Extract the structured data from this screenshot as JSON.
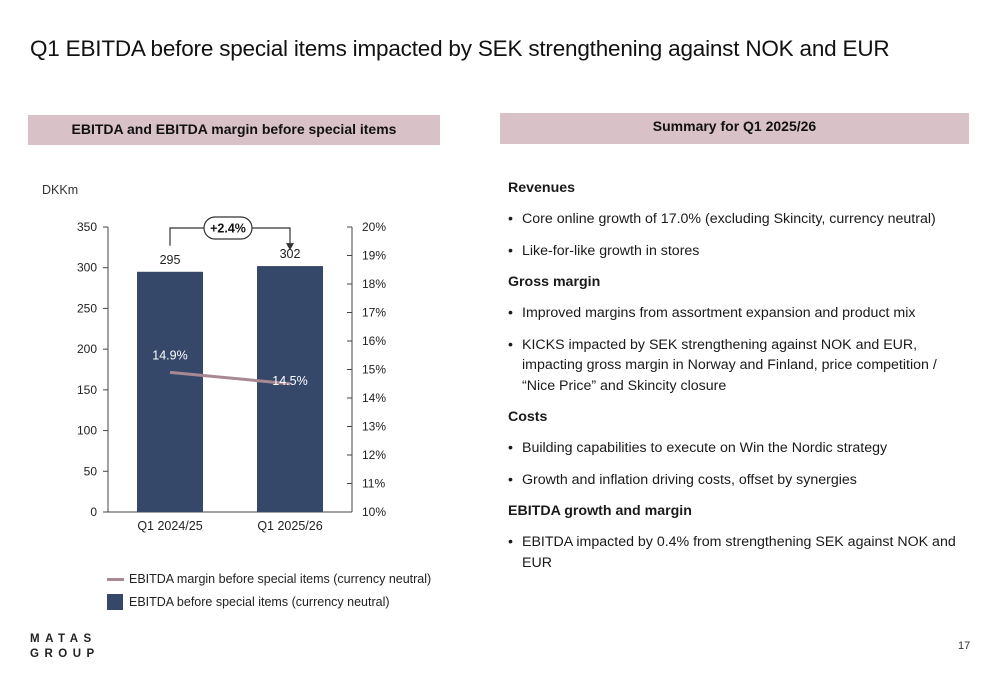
{
  "slide": {
    "title": "Q1 EBITDA before special items impacted by SEK strengthening against NOK and EUR",
    "page_number": "17"
  },
  "left_panel": {
    "header": "EBITDA and EBITDA margin before special items"
  },
  "right_panel": {
    "header": "Summary for Q1 2025/26",
    "sections": [
      {
        "heading": "Revenues",
        "bullets": [
          "Core online growth of 17.0% (excluding Skincity, currency neutral)",
          "Like-for-like growth in stores"
        ]
      },
      {
        "heading": "Gross margin",
        "bullets": [
          "Improved margins from assortment expansion and product mix",
          "KICKS impacted by SEK strengthening against NOK and EUR, impacting gross margin in Norway and Finland, price competition / “Nice Price” and Skincity closure"
        ]
      },
      {
        "heading": "Costs",
        "bullets": [
          "Building capabilities to execute on Win the Nordic strategy",
          "Growth and inflation driving costs, offset by synergies"
        ]
      },
      {
        "heading": "EBITDA growth and margin",
        "bullets": [
          "EBITDA impacted by 0.4% from strengthening SEK against NOK and EUR"
        ]
      }
    ]
  },
  "chart_data": {
    "type": "bar",
    "unit_label": "DKKm",
    "categories": [
      "Q1 2024/25",
      "Q1 2025/26"
    ],
    "series": [
      {
        "name": "EBITDA before special items (currency neutral)",
        "kind": "bar",
        "axis": "left",
        "values": [
          295,
          302
        ],
        "labels": [
          "295",
          "302"
        ]
      },
      {
        "name": "EBITDA margin before special items (currency neutral)",
        "kind": "line",
        "axis": "right",
        "values": [
          14.9,
          14.5
        ],
        "labels": [
          "14.9%",
          "14.5%"
        ]
      }
    ],
    "left_axis": {
      "min": 0,
      "max": 350,
      "ticks": [
        "0",
        "50",
        "100",
        "150",
        "200",
        "250",
        "300",
        "350"
      ]
    },
    "right_axis": {
      "min": 10,
      "max": 20,
      "ticks": [
        "10%",
        "11%",
        "12%",
        "13%",
        "14%",
        "15%",
        "16%",
        "17%",
        "18%",
        "19%",
        "20%"
      ]
    },
    "annotation": "+2.4%",
    "colors": {
      "bar": "#35486a",
      "line": "#a88892",
      "header_bg": "#d9c1c8"
    }
  },
  "logo": {
    "line1": "MATAS",
    "line2": "GROUP"
  }
}
